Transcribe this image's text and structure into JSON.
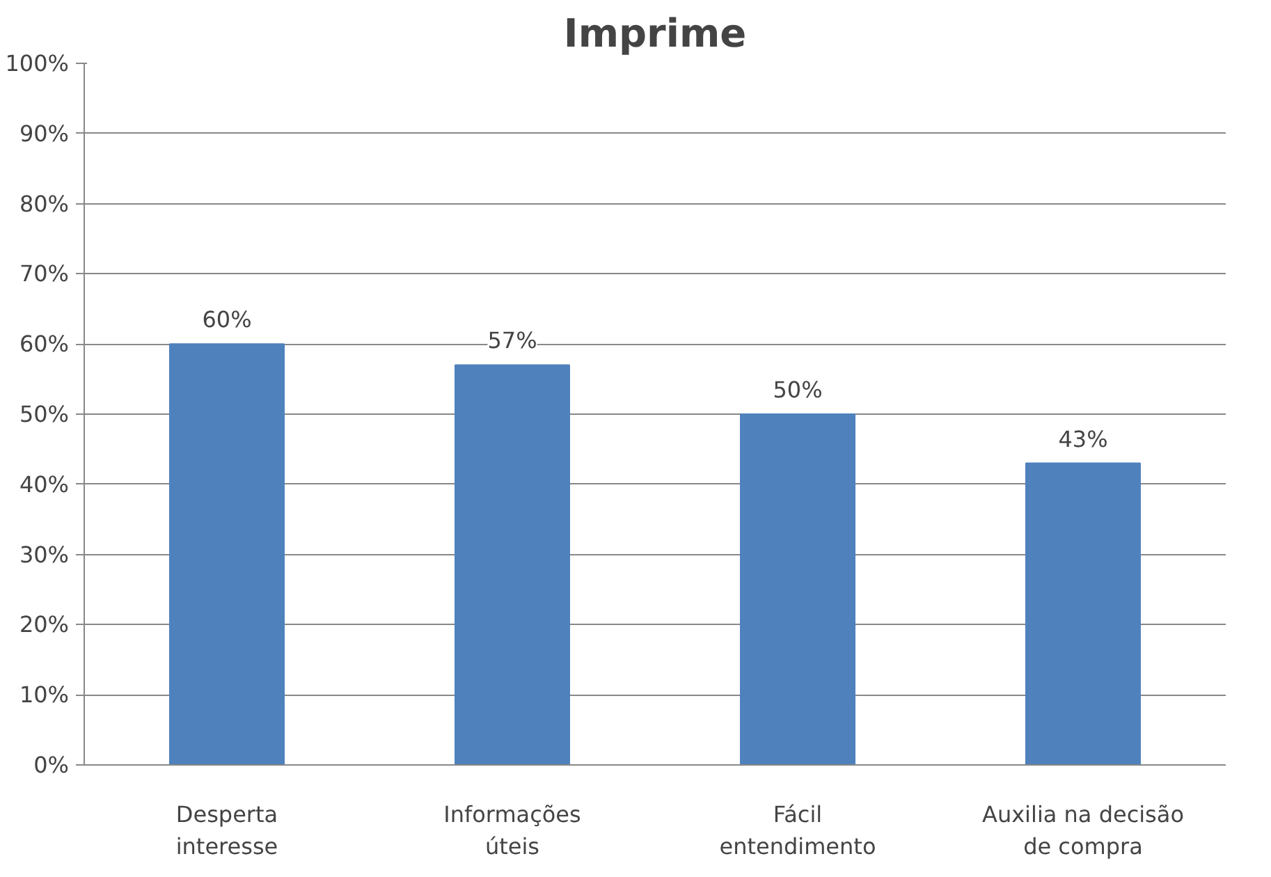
{
  "chart_data": {
    "type": "bar",
    "title": "Imprime",
    "categories": [
      "Desperta interesse",
      "Informações úteis",
      "Fácil entendimento",
      "Auxilia na decisão de compra"
    ],
    "values": [
      60,
      57,
      50,
      43
    ],
    "color": "#4f81bd",
    "value_labels": [
      "60%",
      "57%",
      "50%",
      "43%"
    ],
    "ylim": [
      0,
      100
    ],
    "yticks": [
      {
        "value": 0,
        "label": "0%"
      },
      {
        "value": 10,
        "label": "10%"
      },
      {
        "value": 20,
        "label": "20%"
      },
      {
        "value": 30,
        "label": "30%"
      },
      {
        "value": 40,
        "label": "40%"
      },
      {
        "value": 50,
        "label": "50%"
      },
      {
        "value": 60,
        "label": "60%"
      },
      {
        "value": 70,
        "label": "70%"
      },
      {
        "value": 80,
        "label": "80%"
      },
      {
        "value": 90,
        "label": "90%"
      },
      {
        "value": 100,
        "label": "100%"
      }
    ],
    "grid": "y"
  }
}
